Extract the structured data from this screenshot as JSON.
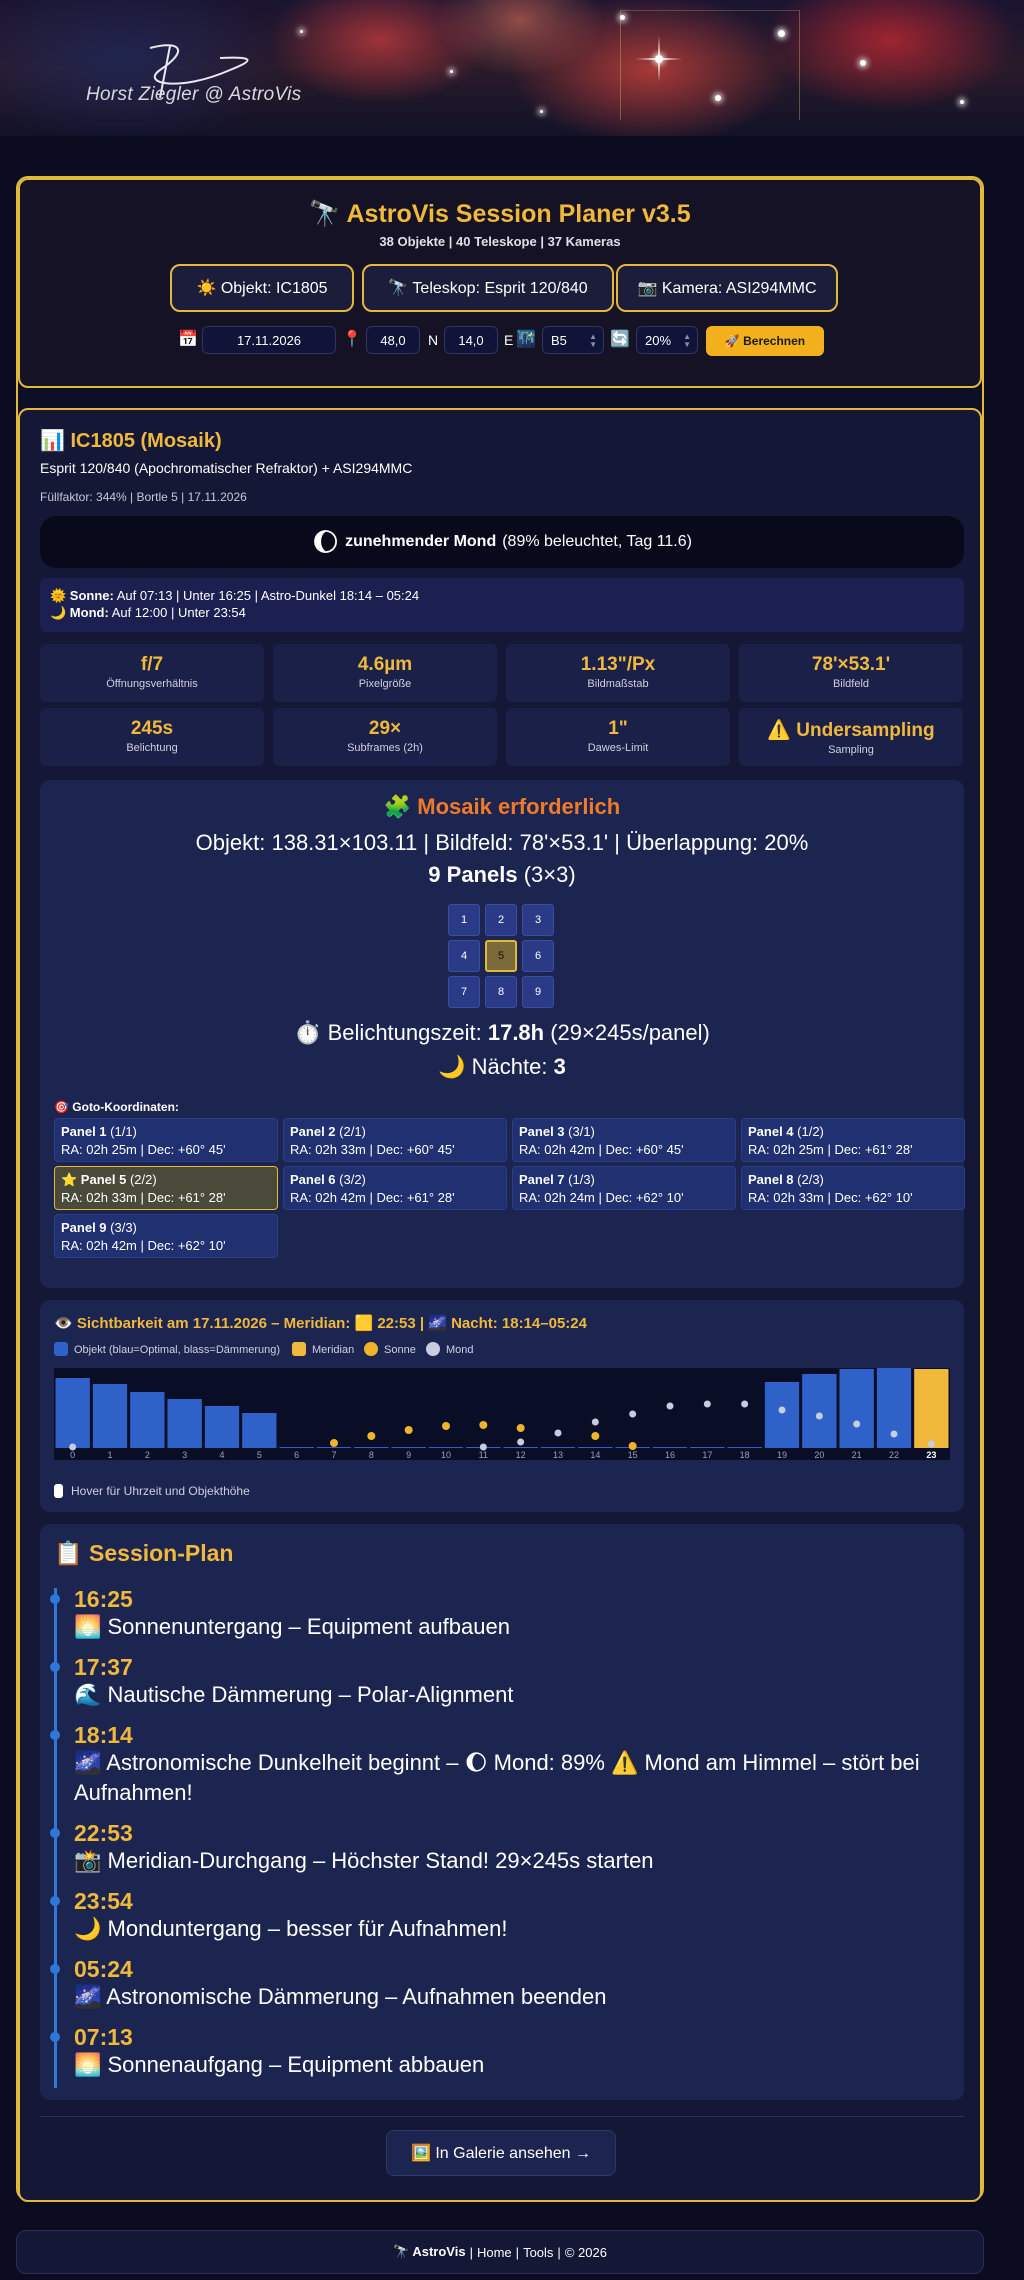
{
  "banner": {
    "signature": "Horst Ziegler @ AstroVis"
  },
  "header": {
    "title": "🔭 AstroVis Session Planer v3.5",
    "subtitle": "38 Objekte | 40 Teleskope | 37 Kameras",
    "object_btn": "☀️ Objekt: IC1805",
    "telescope_btn": "🔭 Teleskop: Esprit 120/840",
    "camera_btn": "📷 Kamera: ASI294MMC",
    "controls": {
      "date": "17.11.2026",
      "lat": "48,0",
      "lat_unit": "N",
      "lon": "14,0",
      "lon_unit": "E",
      "bortle": "B5",
      "overlap": "20%",
      "calc_label": "🚀 Berechnen"
    }
  },
  "result": {
    "title": "📊 IC1805 (Mosaik)",
    "description": "Esprit 120/840 (Apochromatischer Refraktor) + ASI294MMC",
    "meta": "Füllfaktor: 344% | Bortle 5 | 17.11.2026",
    "moon_icon": "🌔",
    "moon_phase": "zunehmender Mond",
    "moon_detail": "(89% beleuchtet, Tag 11.6)",
    "sun_label": "🌞 Sonne:",
    "sun_text": "Auf 07:13 | Unter 16:25 | Astro-Dunkel 18:14 – 05:24",
    "moon_label": "🌙 Mond:",
    "moon_text": "Auf 12:00 | Unter 23:54",
    "cards": [
      {
        "value": "f/7",
        "label": "Öffnungsverhältnis"
      },
      {
        "value": "4.6µm",
        "label": "Pixelgröße"
      },
      {
        "value": "1.13\"/Px",
        "label": "Bildmaßstab"
      },
      {
        "value": "78'×53.1'",
        "label": "Bildfeld"
      },
      {
        "value": "245s",
        "label": "Belichtung"
      },
      {
        "value": "29×",
        "label": "Subframes (2h)"
      },
      {
        "value": "1\"",
        "label": "Dawes-Limit"
      },
      {
        "value": "⚠️ Undersampling",
        "label": "Sampling"
      }
    ]
  },
  "mosaic": {
    "title": "🧩 Mosaik erforderlich",
    "info": "Objekt: 138.31×103.11 | Bildfeld: 78'×53.1' | Überlappung: 20%",
    "panels_bold": "9 Panels",
    "panels_rest": "(3×3)",
    "panel_numbers": [
      "1",
      "2",
      "3",
      "4",
      "5",
      "6",
      "7",
      "8",
      "9"
    ],
    "exposure_pre": "⏱️ Belichtungszeit:",
    "exposure_bold": "17.8h",
    "exposure_rest": "(29×245s/panel)",
    "nights_pre": "🌙 Nächte:",
    "nights_bold": "3",
    "goto_title": "🎯 Goto-Koordinaten:",
    "goto": [
      {
        "name": "Panel 1",
        "pos": "(1/1)",
        "coords": "RA: 02h 25m | Dec: +60° 45'"
      },
      {
        "name": "Panel 2",
        "pos": "(2/1)",
        "coords": "RA: 02h 33m | Dec: +60° 45'"
      },
      {
        "name": "Panel 3",
        "pos": "(3/1)",
        "coords": "RA: 02h 42m | Dec: +60° 45'"
      },
      {
        "name": "Panel 4",
        "pos": "(1/2)",
        "coords": "RA: 02h 25m | Dec: +61° 28'"
      },
      {
        "name": "⭐ Panel 5",
        "pos": "(2/2)",
        "coords": "RA: 02h 33m | Dec: +61° 28'"
      },
      {
        "name": "Panel 6",
        "pos": "(3/2)",
        "coords": "RA: 02h 42m | Dec: +61° 28'"
      },
      {
        "name": "Panel 7",
        "pos": "(1/3)",
        "coords": "RA: 02h 24m | Dec: +62° 10'"
      },
      {
        "name": "Panel 8",
        "pos": "(2/3)",
        "coords": "RA: 02h 33m | Dec: +62° 10'"
      },
      {
        "name": "Panel 9",
        "pos": "(3/3)",
        "coords": "RA: 02h 42m | Dec: +62° 10'"
      }
    ]
  },
  "visibility": {
    "title": "👁️ Sichtbarkeit am 17.11.2026 – Meridian: 🟨 22:53 | 🌌 Nacht: 18:14–05:24",
    "legend_object": "Objekt (blau=Optimal, blass=Dämmerung)",
    "legend_meridian": "Meridian",
    "legend_sun": "Sonne",
    "legend_moon": "Mond",
    "hover_hint": "Hover für Uhrzeit und Objekthöhe",
    "colors": {
      "object": "#2f62c8",
      "meridian": "#f0b93b",
      "sun": "#f0b32a",
      "moon": "#c8cce0"
    }
  },
  "chart_data": {
    "type": "bar",
    "categories": [
      "0",
      "1",
      "2",
      "3",
      "4",
      "5",
      "6",
      "7",
      "8",
      "9",
      "10",
      "11",
      "12",
      "13",
      "14",
      "15",
      "16",
      "17",
      "18",
      "19",
      "20",
      "21",
      "22",
      "23"
    ],
    "series": [
      {
        "name": "Objekt",
        "values": [
          70,
          64,
          56,
          49,
          42,
          35,
          1,
          1,
          1,
          1,
          1,
          1,
          1,
          1,
          1,
          1,
          1,
          1,
          1,
          66,
          74,
          79,
          82,
          79
        ]
      },
      {
        "name": "Sonne",
        "values": [
          null,
          null,
          null,
          null,
          null,
          null,
          null,
          5,
          12,
          18,
          22,
          23,
          20,
          null,
          12,
          2,
          null,
          null,
          null,
          null,
          null,
          null,
          null,
          null
        ]
      },
      {
        "name": "Mond",
        "values": [
          1,
          null,
          null,
          null,
          null,
          null,
          null,
          null,
          null,
          null,
          null,
          1,
          6,
          15,
          26,
          34,
          42,
          44,
          44,
          38,
          32,
          24,
          14,
          4
        ]
      }
    ],
    "meridian_hour": "23",
    "ylim": [
      0,
      80
    ]
  },
  "session": {
    "title": "📋 Session-Plan",
    "events": [
      {
        "time": "16:25",
        "text": "🌅 Sonnenuntergang – Equipment aufbauen"
      },
      {
        "time": "17:37",
        "text": "🌊 Nautische Dämmerung – Polar-Alignment"
      },
      {
        "time": "18:14",
        "text": "🌌 Astronomische Dunkelheit beginnt – 🌔 Mond: 89% ⚠️ Mond am Himmel – stört bei Aufnahmen!"
      },
      {
        "time": "22:53",
        "text": "📸 Meridian-Durchgang – Höchster Stand! 29×245s starten"
      },
      {
        "time": "23:54",
        "text": "🌙 Monduntergang – besser für Aufnahmen!"
      },
      {
        "time": "05:24",
        "text": "🌌 Astronomische Dämmerung – Aufnahmen beenden"
      },
      {
        "time": "07:13",
        "text": "🌅 Sonnenaufgang – Equipment abbauen"
      }
    ]
  },
  "gallery_btn": "🖼️ In Galerie ansehen →",
  "footer": {
    "brand": "🔭 AstroVis",
    "sep1": "|",
    "home": "Home",
    "sep2": "|",
    "tools": "Tools",
    "sep3": "|",
    "copy": "© 2026"
  }
}
